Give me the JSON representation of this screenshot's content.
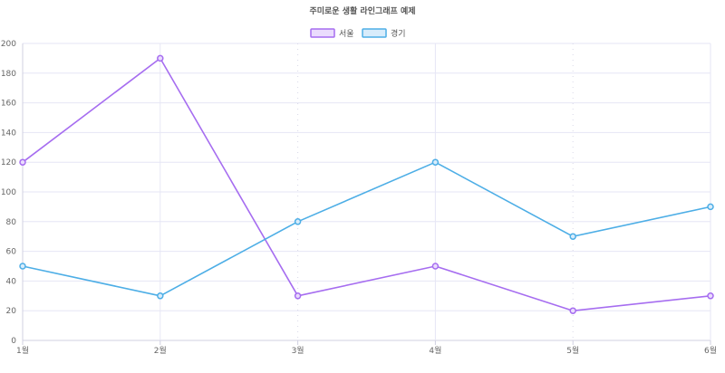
{
  "chart_data": {
    "type": "line",
    "title": "주미로운 생활 라인그래프 예제",
    "categories": [
      "1월",
      "2월",
      "3월",
      "4월",
      "5월",
      "6월"
    ],
    "series": [
      {
        "name": "서울",
        "values": [
          120,
          190,
          30,
          50,
          20,
          30
        ],
        "color": "#a66df0",
        "fill": "#eadcfd"
      },
      {
        "name": "경기",
        "values": [
          50,
          30,
          80,
          120,
          70,
          90
        ],
        "color": "#4daee6",
        "fill": "#d8ecfb"
      }
    ],
    "ylim": [
      0,
      200
    ],
    "y_ticks": [
      0,
      20,
      40,
      60,
      80,
      100,
      120,
      140,
      160,
      180,
      200
    ],
    "grid": true,
    "legend_position": "top-center"
  }
}
